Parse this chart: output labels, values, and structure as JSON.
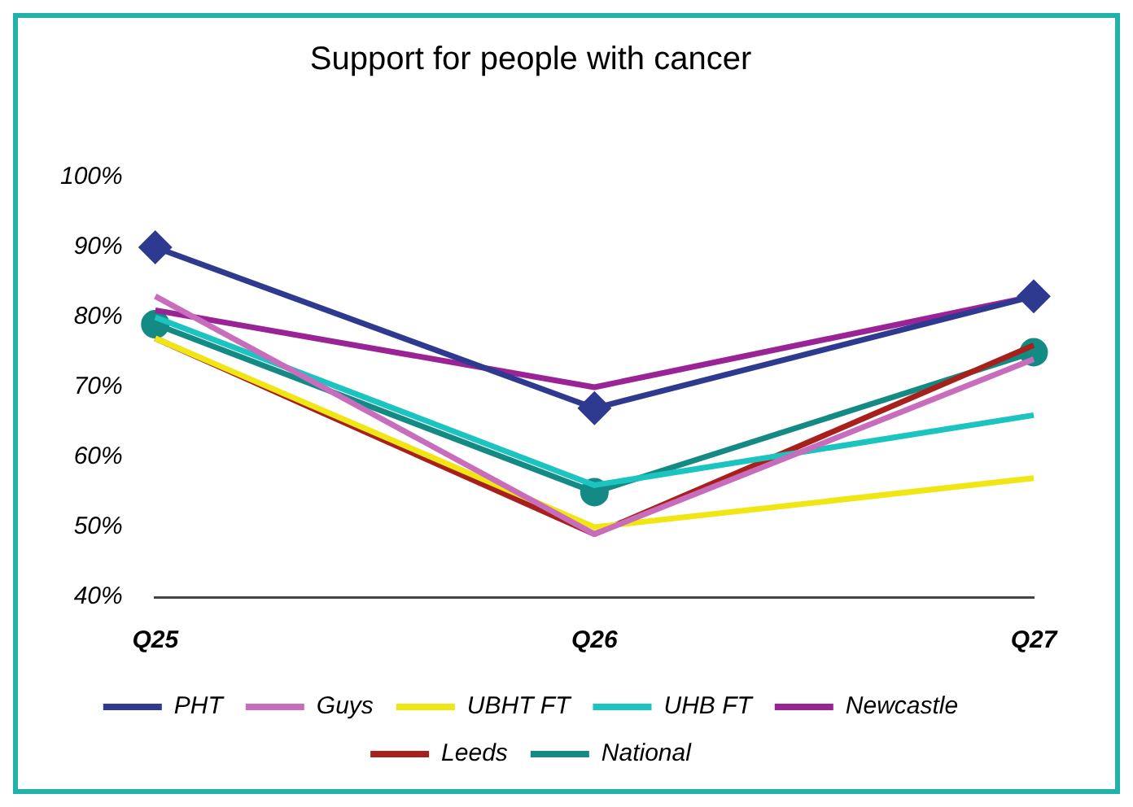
{
  "chart_data": {
    "type": "line",
    "title": "Support for people with cancer",
    "categories": [
      "Q25",
      "Q26",
      "Q27"
    ],
    "ylim": [
      40,
      100
    ],
    "yticks": [
      {
        "value": 40,
        "label": "40%"
      },
      {
        "value": 50,
        "label": "50%"
      },
      {
        "value": 60,
        "label": "60%"
      },
      {
        "value": 70,
        "label": "70%"
      },
      {
        "value": 80,
        "label": "80%"
      },
      {
        "value": 90,
        "label": "90%"
      },
      {
        "value": 100,
        "label": "100%"
      }
    ],
    "grid": false,
    "legend": "bottom",
    "marker": "none",
    "series": [
      {
        "name": "PHT",
        "color": "#2e3a8f",
        "values": [
          90,
          67,
          83
        ],
        "marker": "diamond"
      },
      {
        "name": "Guys",
        "color": "#c86cbc",
        "values": [
          83,
          49,
          74
        ]
      },
      {
        "name": "UBHT FT",
        "color": "#f0e614",
        "values": [
          77,
          50,
          57
        ]
      },
      {
        "name": "UHB FT",
        "color": "#1cc4c0",
        "values": [
          80,
          56,
          66
        ]
      },
      {
        "name": "Newcastle",
        "color": "#9a2496",
        "values": [
          81,
          70,
          83
        ]
      },
      {
        "name": "Leeds",
        "color": "#a8201c",
        "values": [
          77,
          49,
          76
        ]
      },
      {
        "name": "National",
        "color": "#138a84",
        "values": [
          79,
          55,
          75
        ],
        "marker": "circle"
      }
    ]
  }
}
